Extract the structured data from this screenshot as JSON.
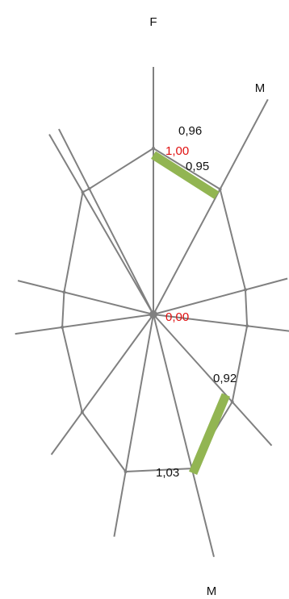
{
  "chart_data": {
    "type": "radar",
    "axis_labels": {
      "top": "F",
      "upper_right": "M",
      "bottom": "M"
    },
    "center_label": "0,00",
    "ring_label": "1,00",
    "spokes": 12,
    "ring_radius_value": 1.0,
    "highlight_segments": [
      {
        "from": {
          "label": "0,96",
          "value": 0.96
        },
        "to": {
          "label": "0,95",
          "value": 0.95
        }
      },
      {
        "from": {
          "label": "0,92",
          "value": 0.92
        },
        "to": {
          "label": "1,03",
          "value": 1.03
        }
      }
    ],
    "colors": {
      "spoke": "#808080",
      "ring": "#808080",
      "highlight": "#92b552",
      "reference_text": "#e01010",
      "text": "#111111"
    }
  }
}
